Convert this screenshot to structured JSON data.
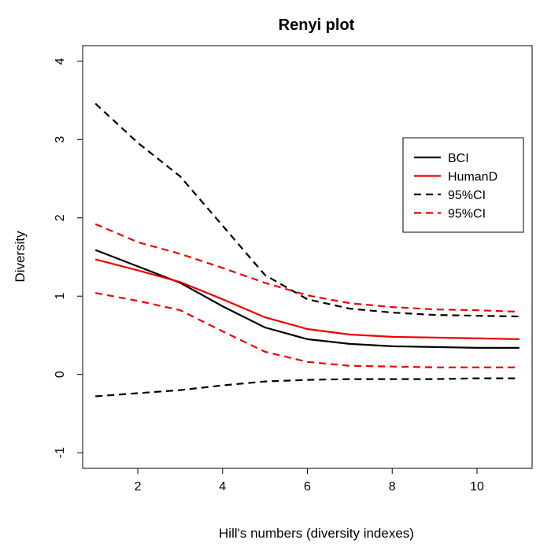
{
  "chart_data": {
    "type": "line",
    "title": "Renyi plot",
    "xlabel": "Hill's numbers (diversity indexes)",
    "ylabel": "Diversity",
    "xlim": [
      0.7,
      11.3
    ],
    "ylim": [
      -1.2,
      4.2
    ],
    "x_ticks": [
      2,
      4,
      6,
      8,
      10
    ],
    "y_ticks": [
      -1,
      0,
      1,
      2,
      3,
      4
    ],
    "grid": false,
    "legend_position": "top-right",
    "x": [
      1,
      2,
      3,
      4,
      5,
      6,
      7,
      8,
      9,
      10,
      11
    ],
    "series": [
      {
        "name": "BCI",
        "color": "#000000",
        "dash": "solid",
        "values": [
          1.59,
          1.38,
          1.17,
          0.87,
          0.6,
          0.45,
          0.39,
          0.36,
          0.35,
          0.34,
          0.34
        ]
      },
      {
        "name": "HumanD",
        "color": "#ee0000",
        "dash": "solid",
        "values": [
          1.47,
          1.33,
          1.18,
          0.96,
          0.73,
          0.58,
          0.51,
          0.48,
          0.47,
          0.46,
          0.45
        ]
      },
      {
        "name": "95%CI",
        "color": "#000000",
        "dash": "dashed",
        "values": [
          3.46,
          2.96,
          2.53,
          1.9,
          1.27,
          0.96,
          0.84,
          0.79,
          0.76,
          0.75,
          0.74
        ]
      },
      {
        "name": "95%CI",
        "color": "#ee0000",
        "dash": "dashed",
        "values": [
          1.92,
          1.69,
          1.54,
          1.36,
          1.17,
          1.01,
          0.91,
          0.86,
          0.83,
          0.82,
          0.8
        ]
      },
      {
        "name": "",
        "color": "#000000",
        "dash": "dashed",
        "values": [
          -0.28,
          -0.24,
          -0.2,
          -0.14,
          -0.09,
          -0.07,
          -0.06,
          -0.06,
          -0.06,
          -0.05,
          -0.05
        ]
      },
      {
        "name": "",
        "color": "#ee0000",
        "dash": "dashed",
        "values": [
          1.04,
          0.94,
          0.82,
          0.55,
          0.29,
          0.16,
          0.11,
          0.1,
          0.09,
          0.09,
          0.09
        ]
      }
    ]
  }
}
